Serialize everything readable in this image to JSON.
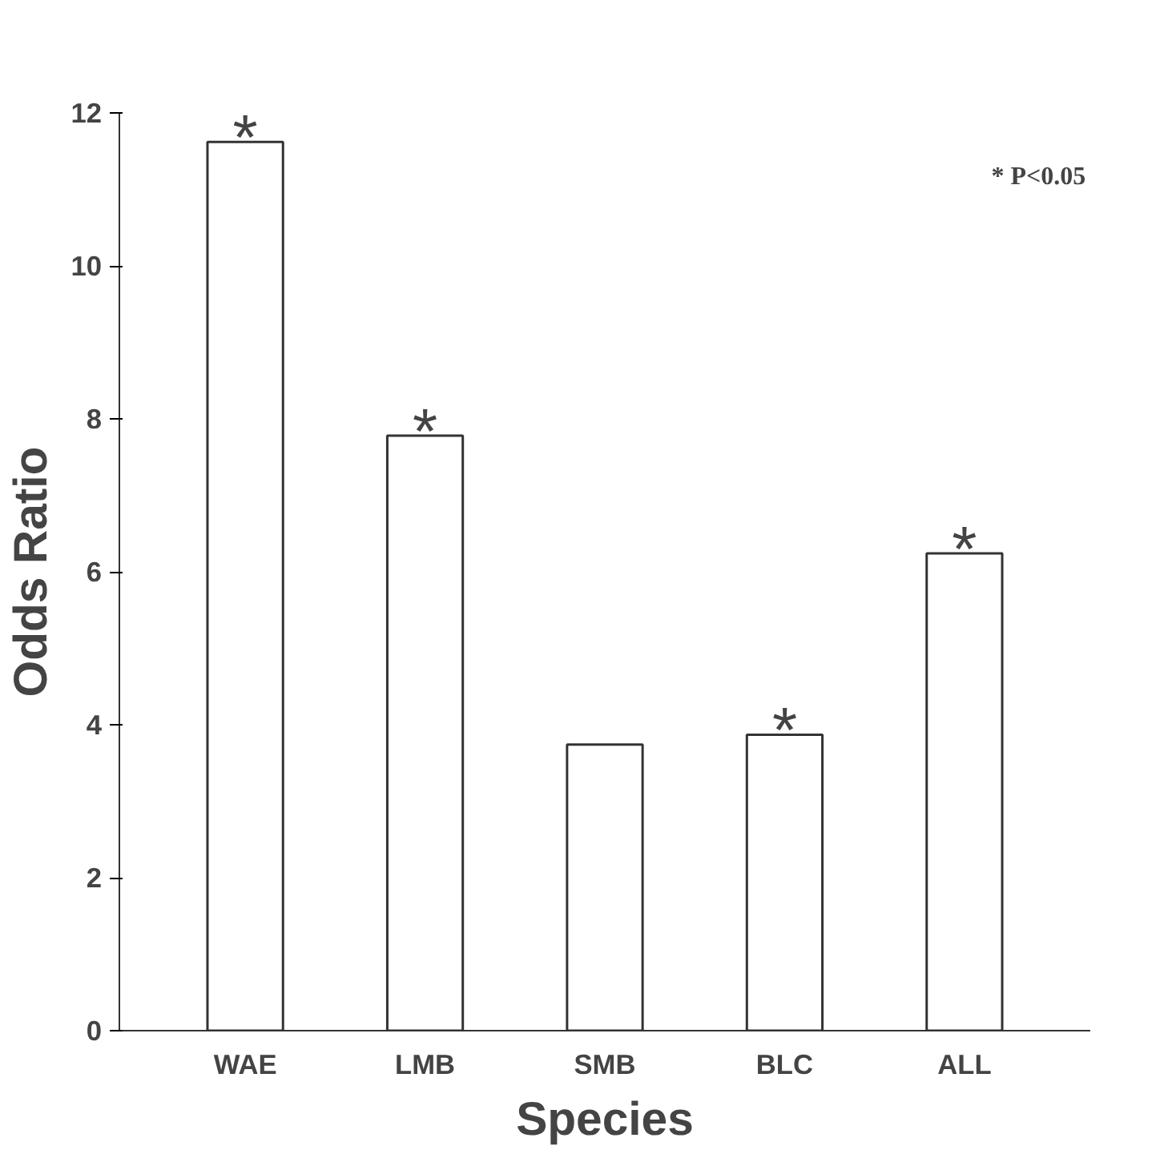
{
  "chart_data": {
    "type": "bar",
    "xlabel": "Species",
    "ylabel": "Odds Ratio",
    "categories": [
      "WAE",
      "LMB",
      "SMB",
      "BLC",
      "ALL"
    ],
    "values": [
      11.62,
      7.78,
      3.74,
      3.87,
      6.24
    ],
    "color": "#ffffff",
    "ylim": [
      0,
      12
    ],
    "yticks": [
      0,
      2,
      4,
      6,
      8,
      10,
      12
    ],
    "grid": false,
    "annotations": [
      {
        "text": "*",
        "x": "WAE",
        "y": 11.62
      },
      {
        "text": "*",
        "x": "LMB",
        "y": 7.78
      },
      {
        "text": "*",
        "x": "BLC",
        "y": 3.87
      },
      {
        "text": "*",
        "x": "ALL",
        "y": 6.24
      },
      "* P<0.05"
    ]
  }
}
